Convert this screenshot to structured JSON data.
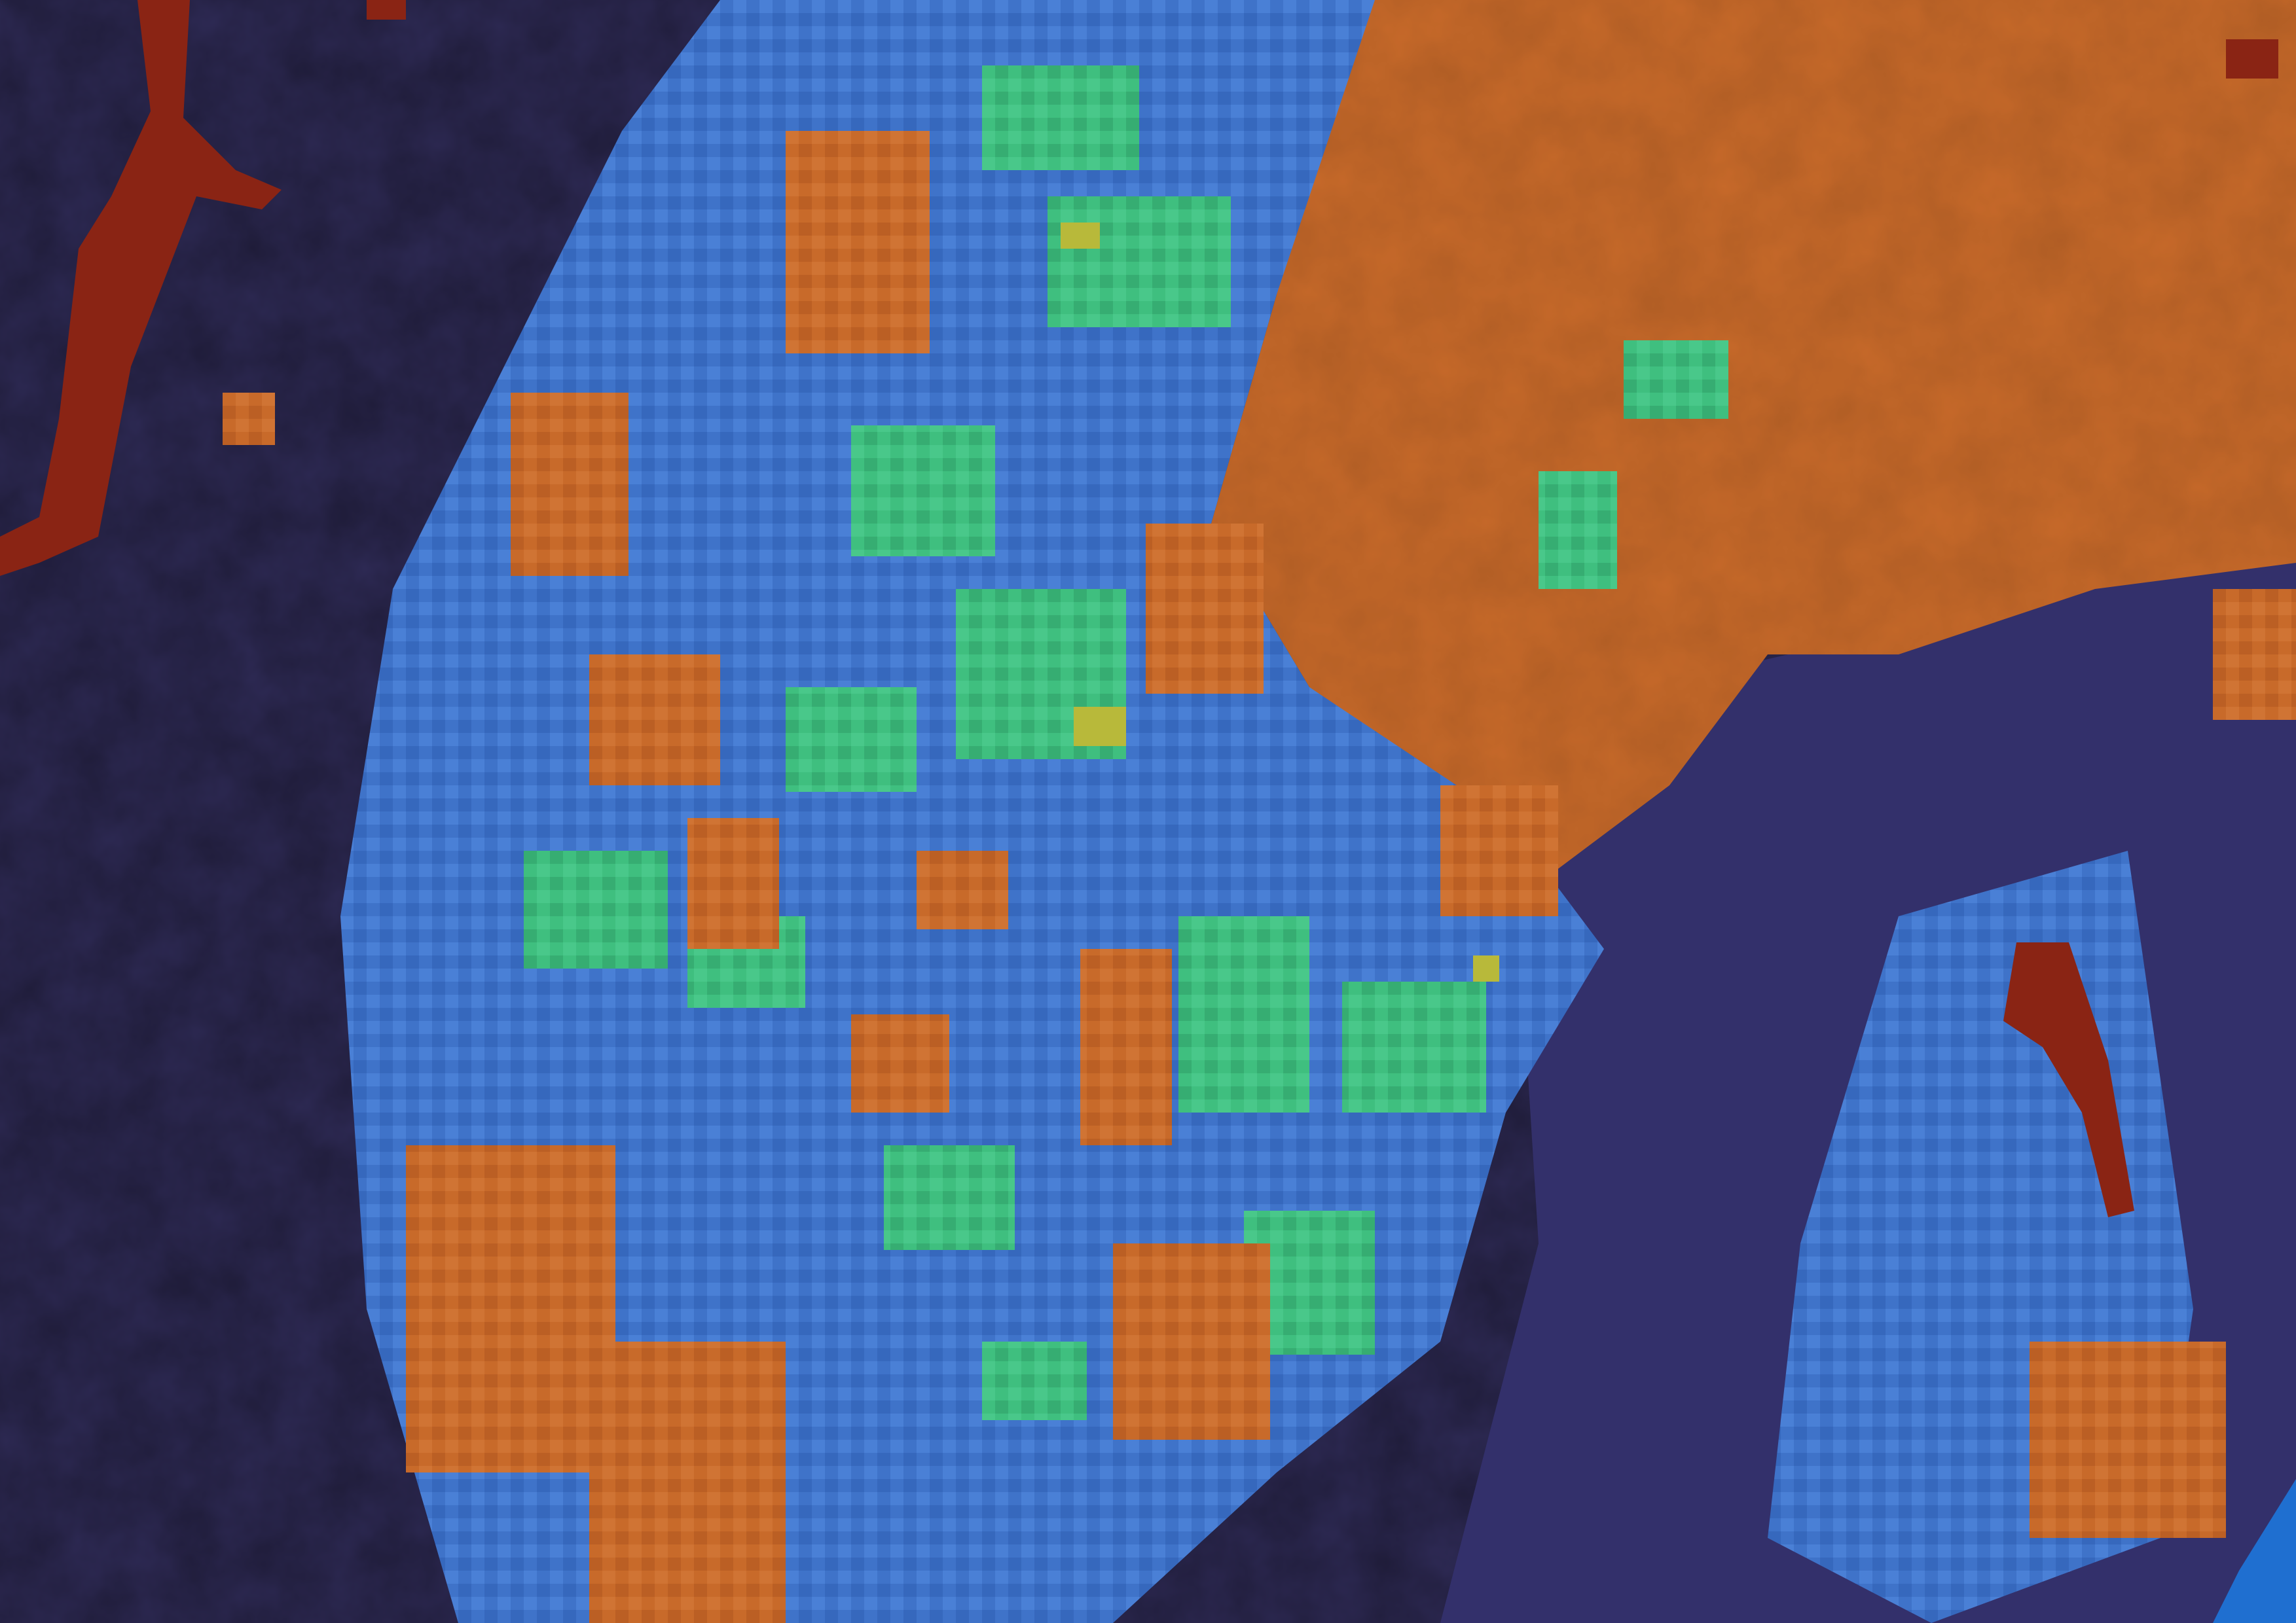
{
  "map": {
    "type": "raster-classification-overlay",
    "basemap": "satellite-terrain",
    "grid": false,
    "legend": "none",
    "labels": [],
    "class_colors": {
      "background_terrain": "#2e2a55",
      "very_low": "#2f2a66",
      "low": "#3f73c9",
      "moderate": "#3fbf7f",
      "elevated": "#b8b93a",
      "high": "#c86a2a",
      "very_high": "#8a2414",
      "urban_tint": "#d08a5c",
      "coastline_water": "#1f6fd0"
    }
  }
}
